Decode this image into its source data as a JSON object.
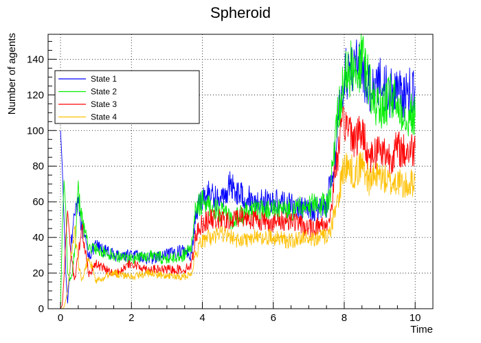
{
  "chart_data": {
    "type": "line",
    "title": "Spheroid",
    "xlabel": "Time",
    "ylabel": "Number of agents",
    "xlim": [
      -0.35,
      10.5
    ],
    "ylim": [
      0,
      154
    ],
    "x_ticks": [
      0,
      2,
      4,
      6,
      8,
      10
    ],
    "x_tick_labels": [
      "0",
      "2",
      "4",
      "6",
      "8",
      "10"
    ],
    "y_ticks": [
      0,
      20,
      40,
      60,
      80,
      100,
      120,
      140
    ],
    "y_tick_labels": [
      "0",
      "20",
      "40",
      "60",
      "80",
      "100",
      "120",
      "140"
    ],
    "grid": true,
    "legend_position": "top-left",
    "series": [
      {
        "name": "State 1",
        "color": "#0000ff",
        "x": [
          0,
          0.05,
          0.1,
          0.15,
          0.2,
          0.3,
          0.4,
          0.5,
          0.6,
          0.8,
          1,
          1.5,
          2,
          2.5,
          3,
          3.5,
          3.7,
          3.8,
          3.9,
          4,
          4.2,
          4.5,
          4.8,
          5,
          5.5,
          6,
          6.5,
          7,
          7.5,
          7.6,
          7.7,
          7.8,
          7.9,
          8,
          8.2,
          8.3,
          8.5,
          8.7,
          9,
          9.3,
          9.5,
          9.7,
          10
        ],
        "y": [
          100,
          80,
          50,
          20,
          3,
          35,
          55,
          63,
          45,
          30,
          35,
          30,
          30,
          28,
          30,
          33,
          30,
          50,
          58,
          62,
          65,
          60,
          70,
          65,
          60,
          60,
          58,
          55,
          58,
          70,
          80,
          95,
          120,
          130,
          135,
          142,
          130,
          125,
          128,
          120,
          125,
          118,
          125
        ]
      },
      {
        "name": "State 2",
        "color": "#00ee00",
        "x": [
          0,
          0.05,
          0.1,
          0.15,
          0.2,
          0.3,
          0.4,
          0.5,
          0.6,
          0.8,
          1,
          1.5,
          2,
          2.5,
          3,
          3.5,
          3.7,
          3.8,
          3.9,
          4,
          4.2,
          4.5,
          4.8,
          5,
          5.5,
          6,
          6.5,
          7,
          7.5,
          7.6,
          7.7,
          7.8,
          7.9,
          8,
          8.2,
          8.3,
          8.5,
          8.7,
          9,
          9.3,
          9.5,
          9.7,
          10
        ],
        "y": [
          0,
          45,
          72,
          55,
          20,
          15,
          35,
          65,
          50,
          35,
          33,
          30,
          28,
          30,
          28,
          30,
          35,
          55,
          58,
          60,
          58,
          55,
          50,
          52,
          55,
          55,
          55,
          58,
          58,
          65,
          85,
          110,
          118,
          130,
          135,
          128,
          140,
          125,
          110,
          118,
          115,
          110,
          108
        ]
      },
      {
        "name": "State 3",
        "color": "#ff0000",
        "x": [
          0,
          0.05,
          0.1,
          0.15,
          0.2,
          0.3,
          0.4,
          0.5,
          0.6,
          0.8,
          1,
          1.5,
          2,
          2.5,
          3,
          3.5,
          3.7,
          3.8,
          3.9,
          4,
          4.2,
          4.5,
          4.8,
          5,
          5.5,
          6,
          6.5,
          7,
          7.5,
          7.6,
          7.7,
          7.8,
          7.9,
          8,
          8.2,
          8.3,
          8.5,
          8.7,
          9,
          9.3,
          9.5,
          9.7,
          10
        ],
        "y": [
          0,
          2,
          18,
          40,
          55,
          30,
          15,
          30,
          45,
          20,
          25,
          20,
          25,
          22,
          22,
          22,
          25,
          40,
          45,
          48,
          50,
          50,
          48,
          52,
          50,
          48,
          50,
          45,
          48,
          50,
          70,
          85,
          95,
          105,
          100,
          95,
          100,
          85,
          90,
          85,
          90,
          88,
          90
        ]
      },
      {
        "name": "State 4",
        "color": "#ffc000",
        "x": [
          0,
          0.05,
          0.1,
          0.15,
          0.2,
          0.3,
          0.4,
          0.5,
          0.6,
          0.8,
          1,
          1.5,
          2,
          2.5,
          3,
          3.5,
          3.7,
          3.8,
          3.9,
          4,
          4.2,
          4.5,
          4.8,
          5,
          5.5,
          6,
          6.5,
          7,
          7.5,
          7.6,
          7.7,
          7.8,
          7.9,
          8,
          8.2,
          8.3,
          8.5,
          8.7,
          9,
          9.3,
          9.5,
          9.7,
          10
        ],
        "y": [
          0,
          0,
          1,
          5,
          10,
          30,
          45,
          25,
          15,
          30,
          15,
          20,
          18,
          20,
          18,
          18,
          20,
          30,
          35,
          38,
          40,
          42,
          40,
          38,
          40,
          40,
          38,
          40,
          40,
          42,
          50,
          60,
          70,
          80,
          78,
          75,
          82,
          72,
          75,
          70,
          72,
          68,
          72
        ]
      }
    ]
  }
}
